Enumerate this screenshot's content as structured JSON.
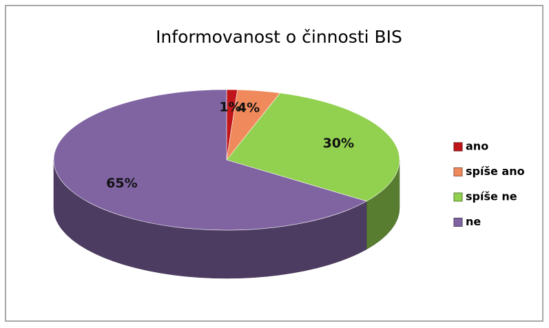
{
  "chart_data": {
    "type": "pie",
    "title": "Informovanost o činnosti BIS",
    "categories": [
      "ano",
      "spíše ano",
      "spíše ne",
      "ne"
    ],
    "values": [
      1,
      4,
      30,
      65
    ],
    "value_labels": [
      "1%",
      "4%",
      "30%",
      "65%"
    ],
    "colors": [
      "#c0161b",
      "#f08a5d",
      "#92d050",
      "#8064a2"
    ],
    "legend": "right"
  }
}
